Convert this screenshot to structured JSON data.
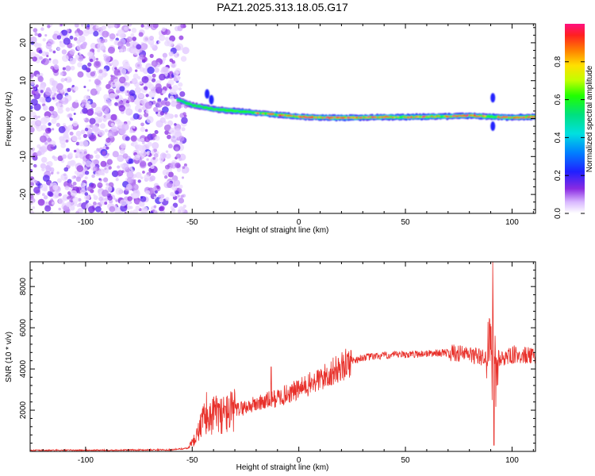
{
  "title": "PAZ1.2025.313.18.05.G17",
  "chart_data": [
    {
      "type": "heatmap",
      "name": "spectrogram",
      "xlabel": "Height of straight line (km)",
      "ylabel": "Frequency (Hz)",
      "xlim": [
        -126,
        111
      ],
      "ylim": [
        -25,
        25
      ],
      "xticks": [
        -100,
        -50,
        0,
        50,
        100
      ],
      "yticks": [
        -20,
        -10,
        0,
        10,
        20
      ],
      "colorbar": {
        "label": "Normalized spectral amplitude",
        "range": [
          0,
          1
        ],
        "ticks": [
          "0.0",
          "0.2",
          "0.4",
          "0.6",
          "0.8"
        ],
        "tick_values": [
          0.0,
          0.2,
          0.4,
          0.6,
          0.8
        ]
      },
      "noise_region_x": [
        -126,
        -55
      ],
      "signal_track": {
        "x": [
          -57,
          -50,
          -40,
          -30,
          -20,
          -10,
          0,
          10,
          20,
          30,
          40,
          50,
          60,
          70,
          80,
          90,
          100,
          111
        ],
        "freq": [
          5,
          3.5,
          2.5,
          2,
          1.5,
          1,
          0.5,
          0.3,
          0.2,
          0.3,
          0.4,
          0.4,
          0.5,
          0.6,
          0.8,
          0.5,
          0.3,
          0.5
        ],
        "amplitude": [
          0.5,
          0.6,
          0.7,
          0.75,
          0.8,
          0.85,
          0.9,
          0.9,
          0.95,
          0.9,
          0.9,
          0.9,
          0.9,
          0.9,
          0.9,
          0.85,
          0.9,
          0.85
        ]
      }
    },
    {
      "type": "line",
      "name": "snr",
      "xlabel": "Height of straight line (km)",
      "ylabel": "SNR (10 * v/v)",
      "xlim": [
        -126,
        111
      ],
      "ylim": [
        0,
        9200
      ],
      "xticks": [
        -100,
        -50,
        0,
        50,
        100
      ],
      "yticks": [
        2000,
        4000,
        6000,
        8000
      ],
      "color": "#e8302a",
      "series_envelope": {
        "x": [
          -126,
          -90,
          -60,
          -52,
          -48,
          -45,
          -40,
          -35,
          -30,
          -20,
          -10,
          0,
          10,
          20,
          25,
          30,
          40,
          50,
          60,
          70,
          80,
          88,
          91,
          95,
          100,
          105,
          111
        ],
        "y": [
          50,
          60,
          80,
          150,
          700,
          1500,
          1800,
          1800,
          2000,
          2300,
          2600,
          3000,
          3500,
          4100,
          4400,
          4550,
          4650,
          4700,
          4750,
          4800,
          4700,
          4500,
          4600,
          4500,
          4650,
          4700,
          4550
        ]
      },
      "peaks": [
        {
          "x": -13,
          "y": 4100
        },
        {
          "x": 91,
          "y": 9200
        },
        {
          "x": 91.5,
          "y": 300
        }
      ]
    }
  ]
}
